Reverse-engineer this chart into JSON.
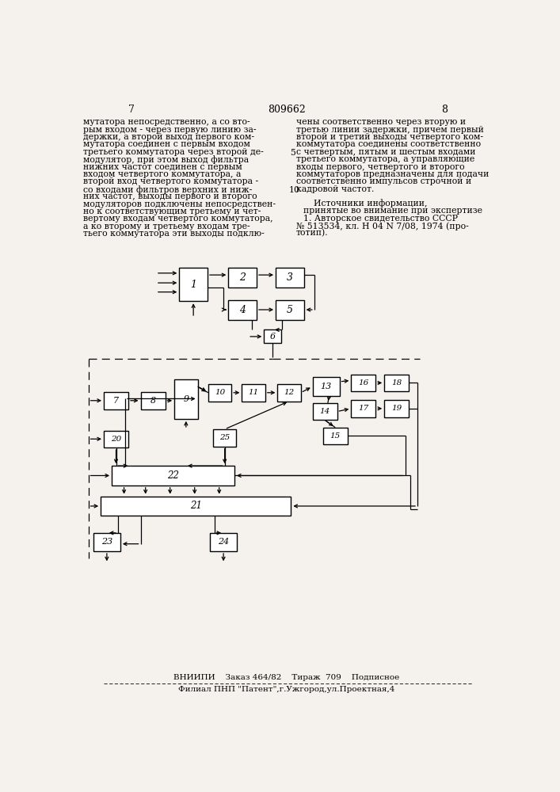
{
  "bg_color": "#f5f2ee",
  "page_left": "7",
  "page_center": "809662",
  "page_right": "8",
  "text_left": [
    "мутатора непосредственно, а со вто-",
    "рым входом - через первую линию за-",
    "держки, а второй выход первого ком-",
    "мутатора соединен с первым входом",
    "третьего коммутатора через второй де-",
    "модулятор, при этом выход фильтра",
    "нижних частот соединен с первым",
    "входом четвертого коммутатора, а",
    "второй вход четвертого коммутатора -",
    "со входами фильтров верхних и ниж-",
    "них частот, выходы первого и второго",
    "модуляторов подключены непосредствен-",
    "но к соответствующим третьему и чет-",
    "вертому входам четвертого коммутатора,",
    "а ко второму и третьему входам тре-",
    "тьего коммутатора эти выходы подклю-"
  ],
  "text_right": [
    "чены соответственно через вторую и",
    "третью линии задержки, причем первый",
    "второй и третий выходы четвертого ком-",
    "коммутатора соединены соответственно",
    "с четвертым, пятым и шестым входами",
    "третьего коммутатора, а управляющие",
    "входы первого, четвертого и второго",
    "коммутаторов предназначены для подачи",
    "соответственно импульсов строчной и",
    "кадровой частот."
  ],
  "src_title": "Источники информации,",
  "src_sub": "принятые во внимание при экспертизе",
  "src1": "1. Авторское свидетельство СССР",
  "src2": "№ 513534, кл. Н 04 N 7/08, 1974 (про-",
  "src3": "тотип).",
  "footer1": "ВНИИПИ    Заказ 464/82    Тираж  709    Подписное",
  "footer2": "Филиал ПНП \"Патент\",г.Ужгород,ул.Проектная,4"
}
